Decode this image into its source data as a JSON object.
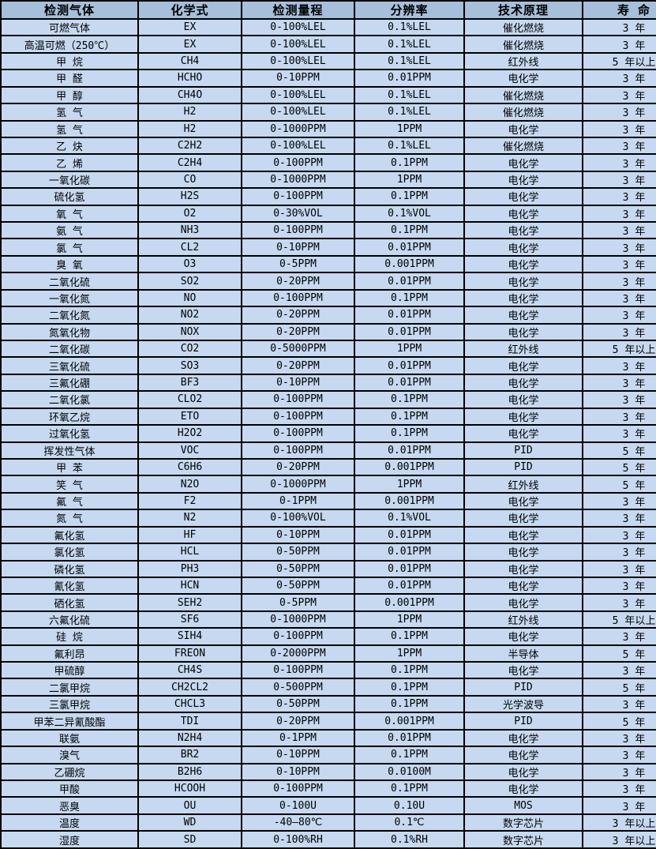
{
  "colors": {
    "header_bg": "#a6bfda",
    "row_bg": "#c6d9f1",
    "border": "#000000",
    "text": "#000000"
  },
  "chart_data": {
    "type": "table",
    "title": "",
    "columns": [
      "检测气体",
      "化学式",
      "检测量程",
      "分辨率",
      "技术原理",
      "寿 命"
    ],
    "column_keys": [
      "gas_name",
      "formula",
      "range",
      "resolution",
      "principle",
      "lifespan"
    ],
    "rows": [
      [
        "可燃气体",
        "EX",
        "0-100%LEL",
        "0.1%LEL",
        "催化燃烧",
        "3 年"
      ],
      [
        "高温可燃（250℃）",
        "EX",
        "0-100%LEL",
        "0.1%LEL",
        "催化燃烧",
        "3 年"
      ],
      [
        "甲 烷",
        "CH4",
        "0-100%LEL",
        "0.1%LEL",
        "红外线",
        "5 年以上"
      ],
      [
        "甲 醛",
        "HCHO",
        "0-10PPM",
        "0.01PPM",
        "电化学",
        "3 年"
      ],
      [
        "甲 醇",
        "CH4O",
        "0-100%LEL",
        "0.1%LEL",
        "催化燃烧",
        "3 年"
      ],
      [
        "氢 气",
        "H2",
        "0-100%LEL",
        "0.1%LEL",
        "催化燃烧",
        "3 年"
      ],
      [
        "氢 气",
        "H2",
        "0-1000PPM",
        "1PPM",
        "电化学",
        "3 年"
      ],
      [
        "乙 炔",
        "C2H2",
        "0-100%LEL",
        "0.1%LEL",
        "催化燃烧",
        "3 年"
      ],
      [
        "乙 烯",
        "C2H4",
        "0-100PPM",
        "0.1PPM",
        "电化学",
        "3 年"
      ],
      [
        "一氧化碳",
        "CO",
        "0-1000PPM",
        "1PPM",
        "电化学",
        "3 年"
      ],
      [
        "硫化氢",
        "H2S",
        "0-100PPM",
        "0.1PPM",
        "电化学",
        "3 年"
      ],
      [
        "氧 气",
        "O2",
        "0-30%VOL",
        "0.1%VOL",
        "电化学",
        "3 年"
      ],
      [
        "氨 气",
        "NH3",
        "0-100PPM",
        "0.1PPM",
        "电化学",
        "3 年"
      ],
      [
        "氯 气",
        "CL2",
        "0-10PPM",
        "0.01PPM",
        "电化学",
        "3 年"
      ],
      [
        "臭 氧",
        "O3",
        "0-5PPM",
        "0.001PPM",
        "电化学",
        "3 年"
      ],
      [
        "二氧化硫",
        "SO2",
        "0-20PPM",
        "0.01PPM",
        "电化学",
        "3 年"
      ],
      [
        "一氧化氮",
        "NO",
        "0-100PPM",
        "0.1PPM",
        "电化学",
        "3 年"
      ],
      [
        "二氧化氮",
        "NO2",
        "0-20PPM",
        "0.01PPM",
        "电化学",
        "3 年"
      ],
      [
        "氮氧化物",
        "NOX",
        "0-20PPM",
        "0.01PPM",
        "电化学",
        "3 年"
      ],
      [
        "二氧化碳",
        "CO2",
        "0-5000PPM",
        "1PPM",
        "红外线",
        "5 年以上"
      ],
      [
        "三氧化硫",
        "SO3",
        "0-20PPM",
        "0.01PPM",
        "电化学",
        "3 年"
      ],
      [
        "三氟化硼",
        "BF3",
        "0-10PPM",
        "0.01PPM",
        "电化学",
        "3 年"
      ],
      [
        "二氧化氯",
        "CLO2",
        "0-100PPM",
        "0.1PPM",
        "电化学",
        "3 年"
      ],
      [
        "环氧乙烷",
        "ETO",
        "0-100PPM",
        "0.1PPM",
        "电化学",
        "3 年"
      ],
      [
        "过氧化氢",
        "H2O2",
        "0-100PPM",
        "0.1PPM",
        "电化学",
        "3 年"
      ],
      [
        "挥发性气体",
        "VOC",
        "0-100PPM",
        "0.01PPM",
        "PID",
        "5 年"
      ],
      [
        "甲 苯",
        "C6H6",
        "0-20PPM",
        "0.001PPM",
        "PID",
        "5 年"
      ],
      [
        "笑 气",
        "N2O",
        "0-1000PPM",
        "1PPM",
        "红外线",
        "5 年"
      ],
      [
        "氟 气",
        "F2",
        "0-1PPM",
        "0.001PPM",
        "电化学",
        "3 年"
      ],
      [
        "氮 气",
        "N2",
        "0-100%VOL",
        "0.1%VOL",
        "电化学",
        "3 年"
      ],
      [
        "氟化氢",
        "HF",
        "0-10PPM",
        "0.01PPM",
        "电化学",
        "3 年"
      ],
      [
        "氯化氢",
        "HCL",
        "0-50PPM",
        "0.01PPM",
        "电化学",
        "3 年"
      ],
      [
        "磷化氢",
        "PH3",
        "0-50PPM",
        "0.01PPM",
        "电化学",
        "3 年"
      ],
      [
        "氰化氢",
        "HCN",
        "0-50PPM",
        "0.01PPM",
        "电化学",
        "3 年"
      ],
      [
        "硒化氢",
        "SEH2",
        "0-5PPM",
        "0.001PPM",
        "电化学",
        "3 年"
      ],
      [
        "六氟化硫",
        "SF6",
        "0-1000PPM",
        "1PPM",
        "红外线",
        "5 年以上"
      ],
      [
        "硅 烷",
        "SIH4",
        "0-100PPM",
        "0.1PPM",
        "电化学",
        "3 年"
      ],
      [
        "氟利昂",
        "FREON",
        "0-2000PPM",
        "1PPM",
        "半导体",
        "5 年"
      ],
      [
        "甲硫醇",
        "CH4S",
        "0-100PPM",
        "0.1PPM",
        "电化学",
        "3 年"
      ],
      [
        "二氯甲烷",
        "CH2CL2",
        "0-500PPM",
        "0.1PPM",
        "PID",
        "5 年"
      ],
      [
        "三氯甲烷",
        "CHCL3",
        "0-50PPM",
        "0.1PPM",
        "光学波导",
        "3 年"
      ],
      [
        "甲苯二异氰酸酯",
        "TDI",
        "0-20PPM",
        "0.001PPM",
        "PID",
        "5 年"
      ],
      [
        "联氨",
        "N2H4",
        "0-1PPM",
        "0.01PPM",
        "电化学",
        "3 年"
      ],
      [
        "溴气",
        "BR2",
        "0-10PPM",
        "0.1PPM",
        "电化学",
        "3 年"
      ],
      [
        "乙硼烷",
        "B2H6",
        "0-10PPM",
        "0.0100M",
        "电化学",
        "3 年"
      ],
      [
        "甲酸",
        "HCOOH",
        "0-100PPM",
        "0.1PPM",
        "电化学",
        "3 年"
      ],
      [
        "恶臭",
        "OU",
        "0-100U",
        "0.10U",
        "MOS",
        "3 年"
      ],
      [
        "温度",
        "WD",
        "-40—80℃",
        "0.1℃",
        "数字芯片",
        "3 年以上"
      ],
      [
        "湿度",
        "SD",
        "0-100%RH",
        "0.1%RH",
        "数字芯片",
        "3 年以上"
      ]
    ]
  }
}
